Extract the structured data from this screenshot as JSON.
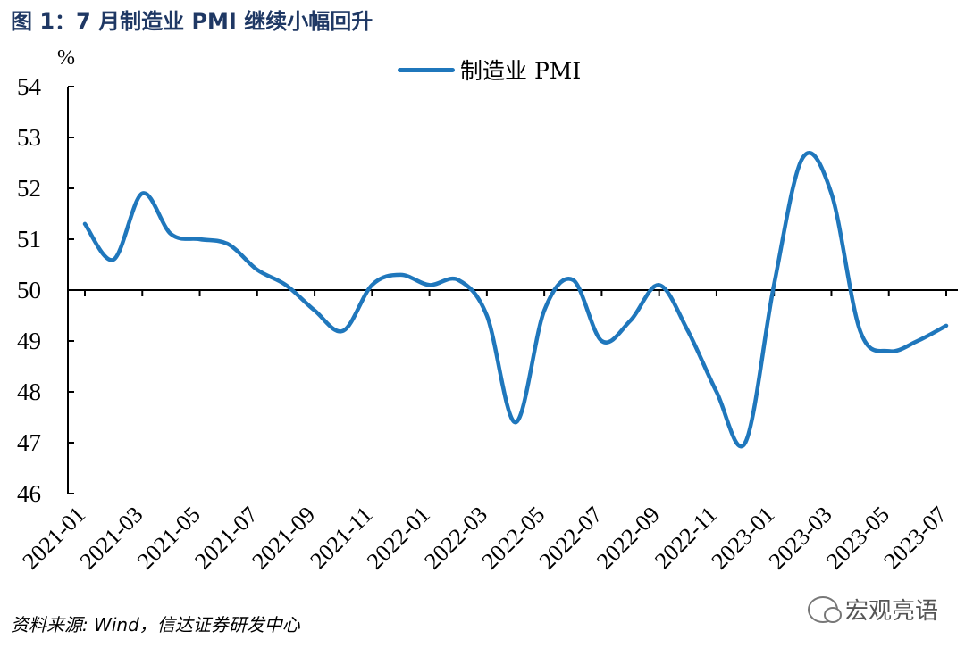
{
  "figure": {
    "title": "图 1：7 月制造业 PMI 继续小幅回升",
    "unit": "%",
    "source": "资料来源: Wind，信达证券研发中心",
    "watermark": "宏观亮语"
  },
  "chart_data": {
    "type": "line",
    "xlabel": "",
    "ylabel": "%",
    "ylim": [
      46,
      54
    ],
    "yticks": [
      46,
      47,
      48,
      49,
      50,
      51,
      52,
      53,
      54
    ],
    "reference_line": 50,
    "tick_labels": [
      "2021-01",
      "2021-03",
      "2021-05",
      "2021-07",
      "2021-09",
      "2021-11",
      "2022-01",
      "2022-03",
      "2022-05",
      "2022-07",
      "2022-09",
      "2022-11",
      "2023-01",
      "2023-03",
      "2023-05",
      "2023-07"
    ],
    "x": [
      "2021-01",
      "2021-02",
      "2021-03",
      "2021-04",
      "2021-05",
      "2021-06",
      "2021-07",
      "2021-08",
      "2021-09",
      "2021-10",
      "2021-11",
      "2021-12",
      "2022-01",
      "2022-02",
      "2022-03",
      "2022-04",
      "2022-05",
      "2022-06",
      "2022-07",
      "2022-08",
      "2022-09",
      "2022-10",
      "2022-11",
      "2022-12",
      "2023-01",
      "2023-02",
      "2023-03",
      "2023-04",
      "2023-05",
      "2023-06",
      "2023-07"
    ],
    "series": [
      {
        "name": "制造业 PMI",
        "color": "#1f77bc",
        "values": [
          51.3,
          50.6,
          51.9,
          51.1,
          51.0,
          50.9,
          50.4,
          50.1,
          49.6,
          49.2,
          50.1,
          50.3,
          50.1,
          50.2,
          49.5,
          47.4,
          49.6,
          50.2,
          49.0,
          49.4,
          50.1,
          49.2,
          48.0,
          47.0,
          50.1,
          52.6,
          51.9,
          49.2,
          48.8,
          49.0,
          49.3
        ]
      }
    ],
    "legend_position": "top"
  }
}
